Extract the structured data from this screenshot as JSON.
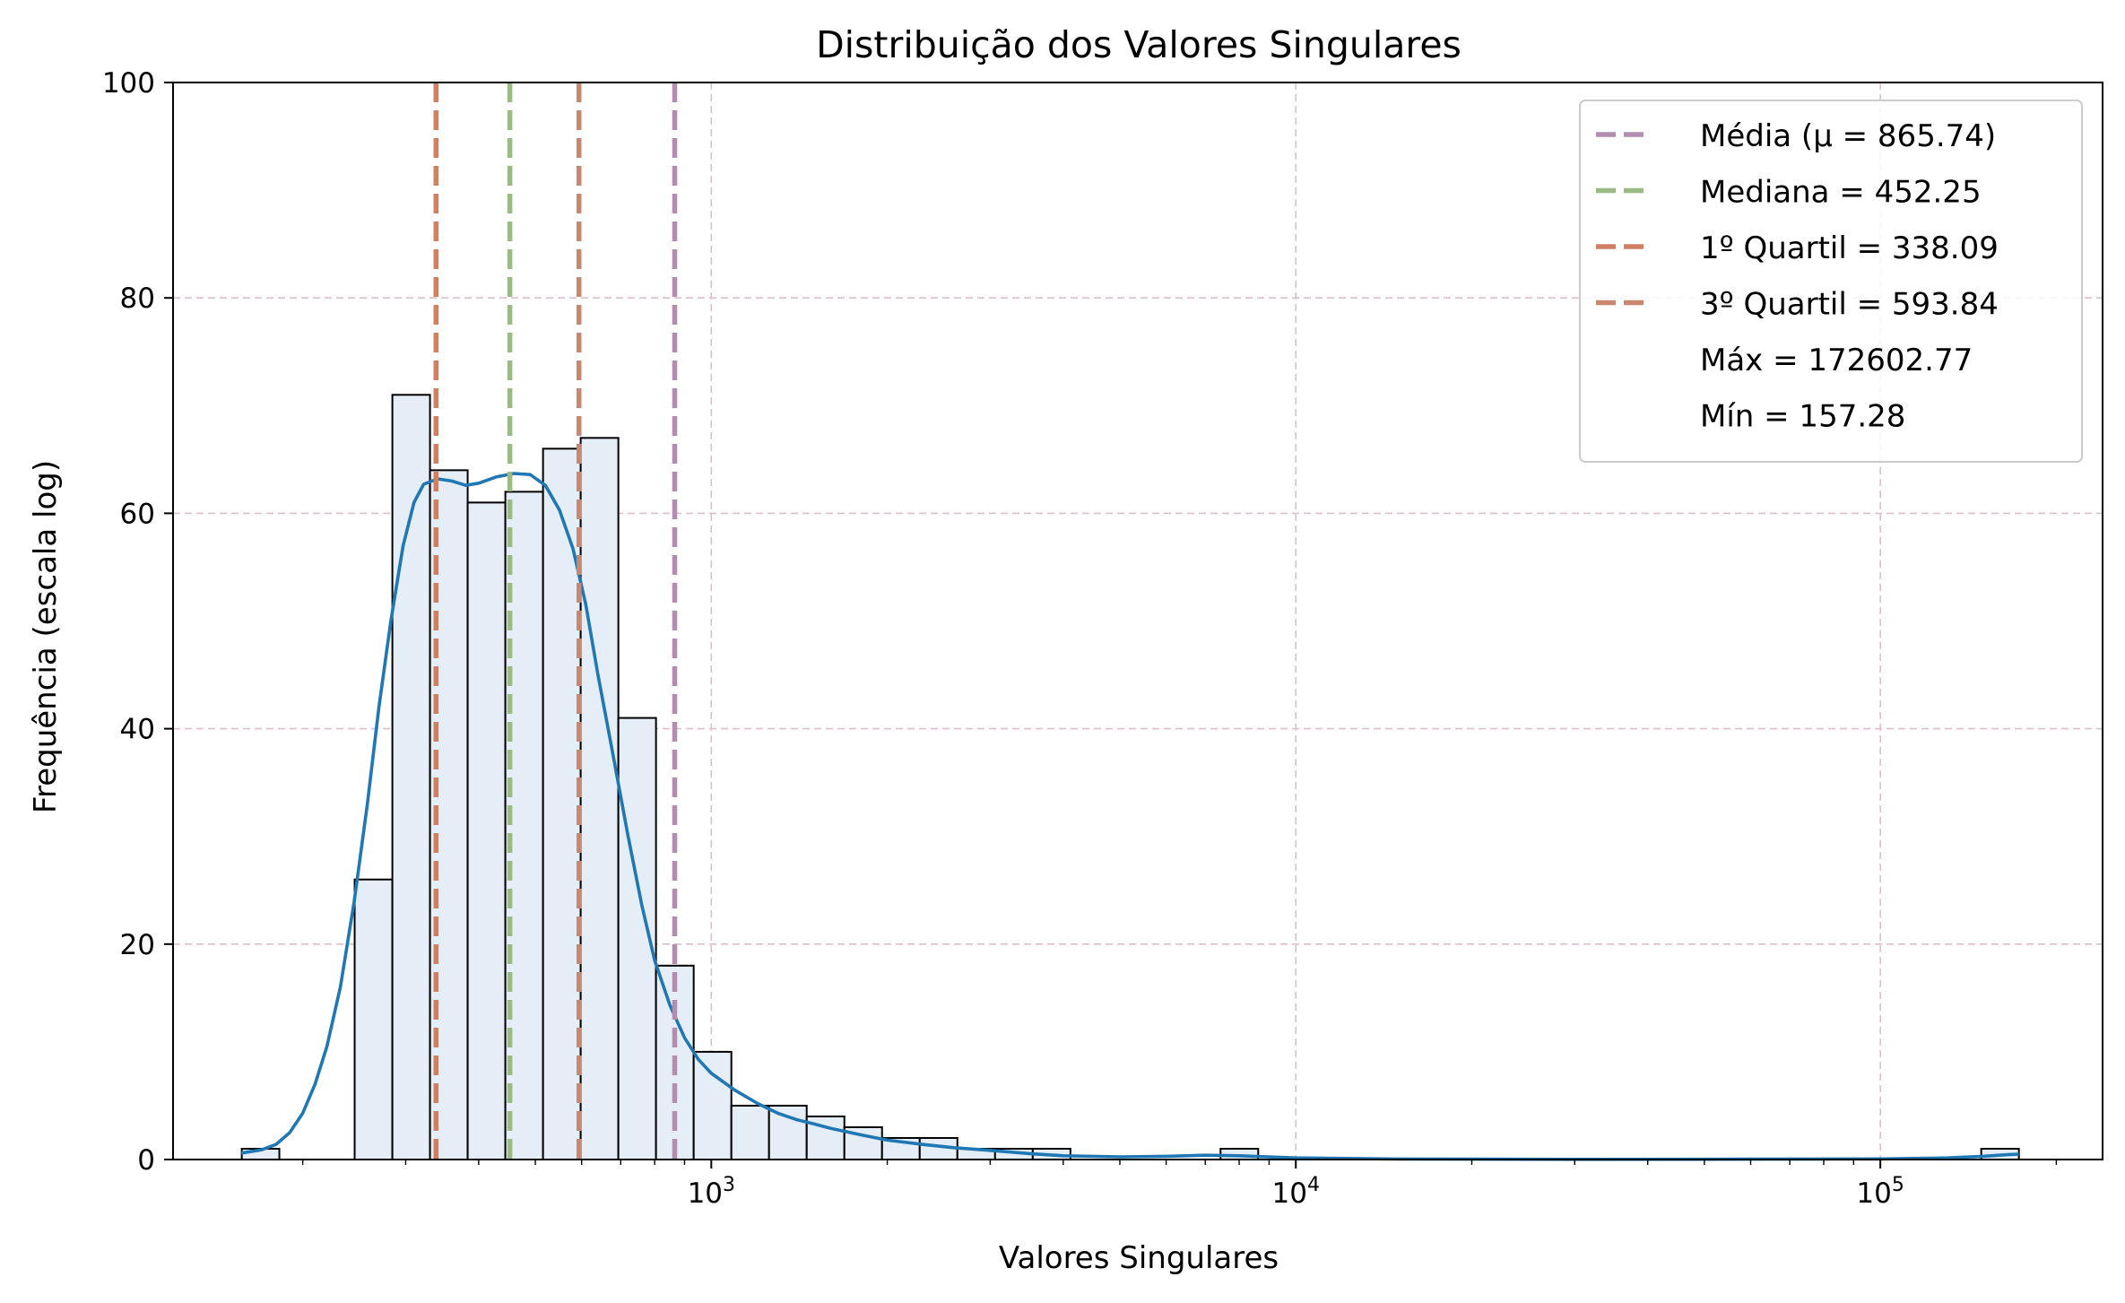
{
  "chart_data": {
    "type": "bar",
    "title": "Distribuição dos Valores Singulares",
    "xlabel": "Valores Singulares",
    "ylabel": "Frequência (escala log)",
    "xscale": "log",
    "xlim": [
      120,
      240000
    ],
    "ylim": [
      0,
      100
    ],
    "grid": true,
    "legend_position": "top-right",
    "x_ticks": [
      {
        "value": 1000,
        "base": "10",
        "exp": "3"
      },
      {
        "value": 10000,
        "base": "10",
        "exp": "4"
      },
      {
        "value": 100000,
        "base": "10",
        "exp": "5"
      }
    ],
    "y_ticks": [
      0,
      20,
      40,
      60,
      80,
      100
    ],
    "histogram": {
      "bins": [
        {
          "x0": 157.3,
          "x1": 182.4,
          "count": 1
        },
        {
          "x0": 182.4,
          "x1": 211.6,
          "count": 0
        },
        {
          "x0": 211.6,
          "x1": 245.4,
          "count": 0
        },
        {
          "x0": 245.4,
          "x1": 284.7,
          "count": 26
        },
        {
          "x0": 284.7,
          "x1": 330.2,
          "count": 71
        },
        {
          "x0": 330.2,
          "x1": 383.0,
          "count": 64
        },
        {
          "x0": 383.0,
          "x1": 444.3,
          "count": 61
        },
        {
          "x0": 444.3,
          "x1": 515.4,
          "count": 62
        },
        {
          "x0": 515.4,
          "x1": 597.8,
          "count": 66
        },
        {
          "x0": 597.8,
          "x1": 693.4,
          "count": 67
        },
        {
          "x0": 693.4,
          "x1": 804.3,
          "count": 41
        },
        {
          "x0": 804.3,
          "x1": 933.0,
          "count": 18
        },
        {
          "x0": 933.0,
          "x1": 1082.3,
          "count": 10
        },
        {
          "x0": 1082.3,
          "x1": 1255.4,
          "count": 5
        },
        {
          "x0": 1255.4,
          "x1": 1456.2,
          "count": 5
        },
        {
          "x0": 1456.2,
          "x1": 1689.2,
          "count": 4
        },
        {
          "x0": 1689.2,
          "x1": 1959.4,
          "count": 3
        },
        {
          "x0": 1959.4,
          "x1": 2272.9,
          "count": 2
        },
        {
          "x0": 2272.9,
          "x1": 2636.6,
          "count": 2
        },
        {
          "x0": 2636.6,
          "x1": 3058.4,
          "count": 1
        },
        {
          "x0": 3058.4,
          "x1": 3547.7,
          "count": 1
        },
        {
          "x0": 3547.7,
          "x1": 4115.3,
          "count": 1
        },
        {
          "x0": 7434.0,
          "x1": 8622.6,
          "count": 1
        },
        {
          "x0": 148800,
          "x1": 172602.77,
          "count": 1
        }
      ]
    },
    "kde": {
      "name": "",
      "color": "#1f77b4",
      "points": [
        [
          157,
          0.6
        ],
        [
          170,
          0.9
        ],
        [
          180,
          1.4
        ],
        [
          190,
          2.5
        ],
        [
          200,
          4.3
        ],
        [
          210,
          7
        ],
        [
          220,
          10.5
        ],
        [
          232,
          16
        ],
        [
          245,
          24
        ],
        [
          258,
          33
        ],
        [
          270,
          42
        ],
        [
          283,
          50
        ],
        [
          297,
          57
        ],
        [
          310,
          61
        ],
        [
          322,
          62.7
        ],
        [
          340,
          63.2
        ],
        [
          360,
          63
        ],
        [
          380,
          62.6
        ],
        [
          400,
          62.8
        ],
        [
          430,
          63.4
        ],
        [
          460,
          63.7
        ],
        [
          490,
          63.6
        ],
        [
          520,
          62.6
        ],
        [
          550,
          60.3
        ],
        [
          580,
          56.7
        ],
        [
          610,
          51.5
        ],
        [
          640,
          45
        ],
        [
          680,
          37.4
        ],
        [
          720,
          30.1
        ],
        [
          760,
          23.7
        ],
        [
          800,
          18.5
        ],
        [
          850,
          14.3
        ],
        [
          900,
          11.3
        ],
        [
          950,
          9.3
        ],
        [
          1000,
          8
        ],
        [
          1100,
          6.4
        ],
        [
          1200,
          5.2
        ],
        [
          1300,
          4.3
        ],
        [
          1400,
          3.7
        ],
        [
          1500,
          3.3
        ],
        [
          1600,
          2.9
        ],
        [
          1800,
          2.3
        ],
        [
          2000,
          1.8
        ],
        [
          2300,
          1.4
        ],
        [
          2600,
          1.1
        ],
        [
          3000,
          0.85
        ],
        [
          3500,
          0.55
        ],
        [
          4000,
          0.35
        ],
        [
          5000,
          0.25
        ],
        [
          6000,
          0.3
        ],
        [
          7000,
          0.4
        ],
        [
          8000,
          0.35
        ],
        [
          10000,
          0.15
        ],
        [
          15000,
          0.05
        ],
        [
          30000,
          0.02
        ],
        [
          60000,
          0.03
        ],
        [
          100000,
          0.06
        ],
        [
          130000,
          0.15
        ],
        [
          150000,
          0.3
        ],
        [
          165000,
          0.45
        ],
        [
          172600,
          0.5
        ]
      ]
    },
    "vlines": [
      {
        "label": "Média (μ = 865.74)",
        "value": 865.74,
        "color": "#b38daf"
      },
      {
        "label": "Mediana = 452.25",
        "value": 452.25,
        "color": "#9bba86"
      },
      {
        "label": "1º Quartil = 338.09",
        "value": 338.09,
        "color": "#cf8062"
      },
      {
        "label": "3º Quartil = 593.84",
        "value": 593.84,
        "color": "#c88770"
      }
    ],
    "text_entries": [
      {
        "label": "Máx = 172602.77",
        "value": 172602.77
      },
      {
        "label": "Mín = 157.28",
        "value": 157.28
      }
    ],
    "colors": {
      "bar_fill": "#e5eef7",
      "bar_edge": "#000000",
      "grid": "#dcbfce"
    }
  }
}
